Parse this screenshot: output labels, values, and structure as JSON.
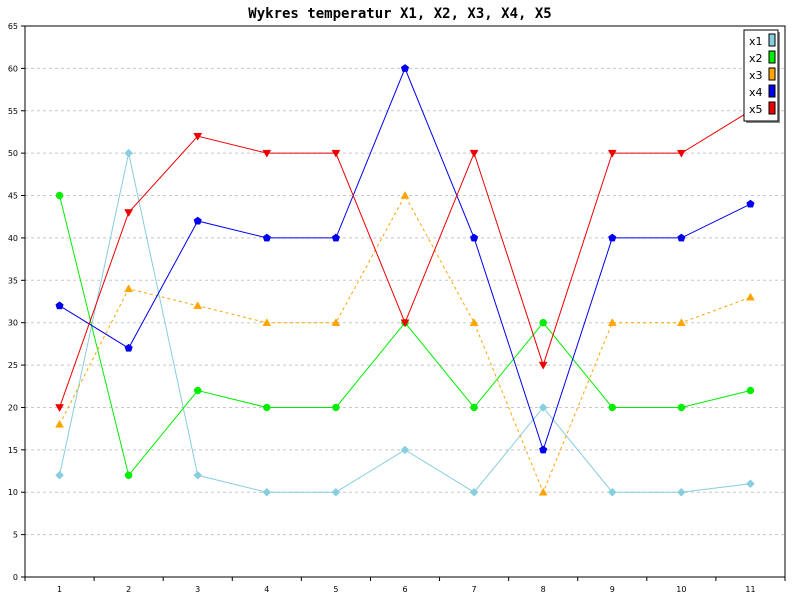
{
  "chart_data": {
    "type": "line",
    "title": "Wykres temperatur X1, X2, X3, X4, X5",
    "xlabel": "",
    "ylabel": "",
    "categories": [
      "1",
      "2",
      "3",
      "4",
      "5",
      "6",
      "7",
      "8",
      "9",
      "10",
      "11"
    ],
    "ylim": [
      0,
      65
    ],
    "yticks": [
      0,
      5,
      10,
      15,
      20,
      25,
      30,
      35,
      40,
      45,
      50,
      55,
      60,
      65
    ],
    "grid": true,
    "legend_position": "top-right",
    "series": [
      {
        "name": "x1",
        "color": "#87CEDF",
        "marker": "diamond",
        "dashed": false,
        "values": [
          12,
          50,
          12,
          10,
          10,
          15,
          10,
          20,
          10,
          10,
          11
        ]
      },
      {
        "name": "x2",
        "color": "#00EE00",
        "marker": "circle",
        "dashed": false,
        "values": [
          45,
          12,
          22,
          20,
          20,
          30,
          20,
          30,
          20,
          20,
          22
        ]
      },
      {
        "name": "x3",
        "color": "#FFA500",
        "marker": "triangle-up",
        "dashed": true,
        "values": [
          18,
          34,
          32,
          30,
          30,
          45,
          30,
          10,
          30,
          30,
          33
        ]
      },
      {
        "name": "x4",
        "color": "#0000EE",
        "marker": "pentagon",
        "dashed": false,
        "values": [
          32,
          27,
          42,
          40,
          40,
          60,
          40,
          15,
          40,
          40,
          44
        ]
      },
      {
        "name": "x5",
        "color": "#EE0000",
        "marker": "triangle-down",
        "dashed": false,
        "values": [
          20,
          43,
          52,
          50,
          50,
          30,
          50,
          25,
          50,
          50,
          55
        ]
      }
    ]
  }
}
